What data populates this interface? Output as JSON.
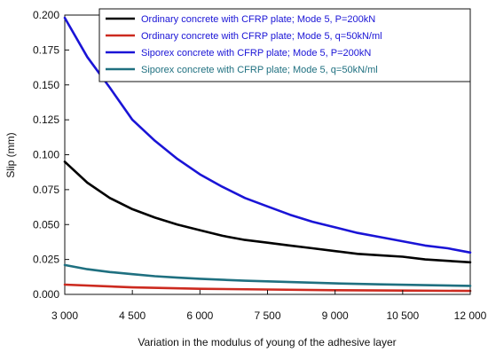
{
  "chart_data": {
    "type": "line",
    "title": "",
    "xlabel": "Variation in the modulus of young of the adhesive layer",
    "ylabel": "Slip (mm)",
    "xlim": [
      3000,
      12000
    ],
    "ylim": [
      0.0,
      0.2
    ],
    "xticks": [
      3000,
      4500,
      6000,
      7500,
      9000,
      10500,
      12000
    ],
    "xtick_labels": [
      "3 000",
      "4 500",
      "6 000",
      "7 500",
      "9 000",
      "10 500",
      "12 000"
    ],
    "yticks": [
      0.0,
      0.025,
      0.05,
      0.075,
      0.1,
      0.125,
      0.15,
      0.175,
      0.2
    ],
    "ytick_labels": [
      "0.000",
      "0.025",
      "0.050",
      "0.075",
      "0.100",
      "0.125",
      "0.150",
      "0.175",
      "0.200"
    ],
    "grid": false,
    "legend_position": "top-right",
    "series": [
      {
        "name": "Ordinary concrete with CFRP plate; Mode 5, P=200kN",
        "color": "#000000",
        "x": [
          3000,
          3500,
          4000,
          4500,
          5000,
          5500,
          6000,
          6500,
          7000,
          7500,
          8000,
          8500,
          9000,
          9500,
          10000,
          10500,
          11000,
          11500,
          12000
        ],
        "y": [
          0.095,
          0.08,
          0.069,
          0.061,
          0.055,
          0.05,
          0.046,
          0.042,
          0.039,
          0.037,
          0.035,
          0.033,
          0.031,
          0.029,
          0.028,
          0.027,
          0.025,
          0.024,
          0.023
        ]
      },
      {
        "name": "Ordinary concrete with CFRP plate; Mode 5, q=50kN/ml",
        "color": "#cc2a1f",
        "x": [
          3000,
          4500,
          6000,
          7500,
          9000,
          10500,
          12000
        ],
        "y": [
          0.007,
          0.005,
          0.004,
          0.0035,
          0.003,
          0.0027,
          0.0025
        ]
      },
      {
        "name": "Siporex concrete with CFRP plate; Mode 5, P=200kN",
        "color": "#1a14d6",
        "x": [
          3000,
          3500,
          4000,
          4500,
          5000,
          5500,
          6000,
          6500,
          7000,
          7500,
          8000,
          8500,
          9000,
          9500,
          10000,
          10500,
          11000,
          11500,
          12000
        ],
        "y": [
          0.198,
          0.17,
          0.148,
          0.125,
          0.11,
          0.097,
          0.086,
          0.077,
          0.069,
          0.063,
          0.057,
          0.052,
          0.048,
          0.044,
          0.041,
          0.038,
          0.035,
          0.033,
          0.03
        ]
      },
      {
        "name": "Siporex concrete with CFRP plate; Mode 5, q=50kN/ml",
        "color": "#1f7080",
        "x": [
          3000,
          3500,
          4000,
          4500,
          5000,
          5500,
          6000,
          7000,
          8000,
          9000,
          10000,
          11000,
          12000
        ],
        "y": [
          0.021,
          0.018,
          0.016,
          0.0145,
          0.013,
          0.012,
          0.0112,
          0.0098,
          0.0088,
          0.0079,
          0.0072,
          0.0066,
          0.0061
        ]
      }
    ]
  }
}
